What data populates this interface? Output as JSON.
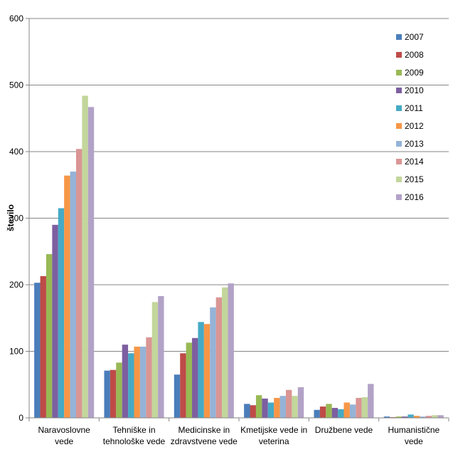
{
  "chart_data": {
    "type": "bar",
    "title": "",
    "xlabel": "",
    "ylabel": "število",
    "ylim": [
      0,
      600
    ],
    "yticks": [
      0,
      100,
      200,
      300,
      400,
      500,
      600
    ],
    "grid": true,
    "legend_position": "right",
    "categories": [
      [
        "Naravoslovne",
        "vede"
      ],
      [
        "Tehniške in",
        "tehnološke vede"
      ],
      [
        "Medicinske in",
        "zdravstvene vede"
      ],
      [
        "Kmetijske vede in",
        "veterina"
      ],
      [
        "Družbene vede"
      ],
      [
        "Humanistične",
        "vede"
      ]
    ],
    "series": [
      {
        "name": "2007",
        "color": "#4a7ebb",
        "values": [
          203,
          71,
          65,
          21,
          12,
          2
        ]
      },
      {
        "name": "2008",
        "color": "#be4b48",
        "values": [
          213,
          72,
          97,
          19,
          17,
          1
        ]
      },
      {
        "name": "2009",
        "color": "#98b954",
        "values": [
          246,
          83,
          113,
          34,
          21,
          2
        ]
      },
      {
        "name": "2010",
        "color": "#7d5fa0",
        "values": [
          290,
          110,
          120,
          29,
          15,
          2
        ]
      },
      {
        "name": "2011",
        "color": "#46aac5",
        "values": [
          315,
          97,
          144,
          23,
          13,
          5
        ]
      },
      {
        "name": "2012",
        "color": "#f79646",
        "values": [
          364,
          107,
          141,
          30,
          23,
          3
        ]
      },
      {
        "name": "2013",
        "color": "#95b3d7",
        "values": [
          370,
          107,
          166,
          33,
          20,
          2
        ]
      },
      {
        "name": "2014",
        "color": "#d99694",
        "values": [
          404,
          121,
          181,
          42,
          30,
          3
        ]
      },
      {
        "name": "2015",
        "color": "#c3d69b",
        "values": [
          484,
          174,
          196,
          33,
          31,
          4
        ]
      },
      {
        "name": "2016",
        "color": "#b3a2c7",
        "values": [
          467,
          183,
          202,
          46,
          51,
          4
        ]
      }
    ]
  }
}
